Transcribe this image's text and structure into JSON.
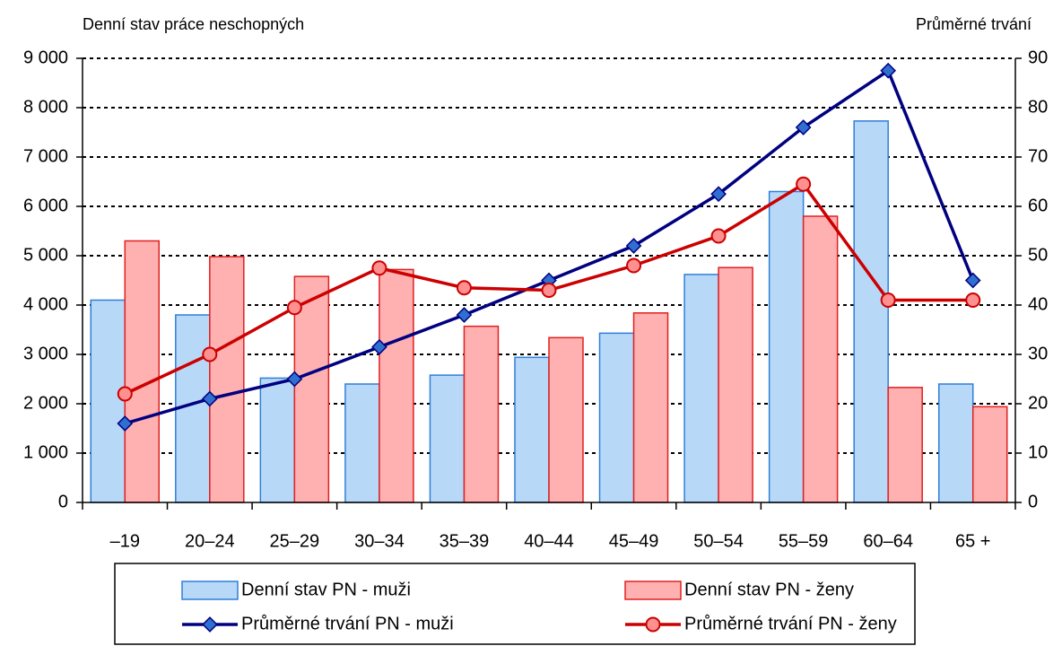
{
  "chart_data": {
    "type": "bar-line",
    "ylabel": "Denní stav práce neschopných",
    "y2label": "Průměrné trvání",
    "categories": [
      "–19",
      "20–24",
      "25–29",
      "30–34",
      "35–39",
      "40–44",
      "45–49",
      "50–54",
      "55–59",
      "60–64",
      "65 +"
    ],
    "series": [
      {
        "name": "Denní stav PN - muži",
        "type": "bar",
        "color": "#b8d8f8",
        "values": [
          4100,
          3800,
          2520,
          2400,
          2580,
          2940,
          3430,
          4620,
          6300,
          7730,
          2400
        ]
      },
      {
        "name": "Denní stav PN - ženy",
        "type": "bar",
        "color": "#ffb0b0",
        "values": [
          5300,
          4980,
          4580,
          4720,
          3570,
          3340,
          3840,
          4760,
          5800,
          2330,
          1940
        ]
      },
      {
        "name": "Průměrné trvání PN - muži",
        "type": "line",
        "axis": "y2",
        "color": "#000080",
        "values": [
          16,
          21,
          25,
          31.5,
          38,
          45,
          52,
          62.5,
          76,
          87.5,
          45
        ]
      },
      {
        "name": "Průměrné trvání PN - ženy",
        "type": "line",
        "axis": "y2",
        "color": "#cc0000",
        "values": [
          22,
          30,
          39.5,
          47.5,
          43.5,
          43,
          48,
          54,
          64.5,
          41,
          41
        ]
      }
    ],
    "ylim": [
      0,
      9000
    ],
    "yticks": [
      0,
      {
        "value": 1000,
        "label": "1 000"
      },
      {
        "value": 2000,
        "label": "2 000"
      },
      {
        "value": 3000,
        "label": "3 000"
      },
      {
        "value": 4000,
        "label": "4 000"
      },
      {
        "value": 5000,
        "label": "5 000"
      },
      {
        "value": 6000,
        "label": "6 000"
      },
      {
        "value": 7000,
        "label": "7 000"
      },
      {
        "value": 8000,
        "label": "8 000"
      },
      {
        "value": 9000,
        "label": "9 000"
      }
    ],
    "y2lim": [
      0,
      90
    ],
    "y2ticks": [
      0,
      10,
      20,
      30,
      40,
      50,
      60,
      70,
      80,
      90
    ],
    "grid": true
  }
}
